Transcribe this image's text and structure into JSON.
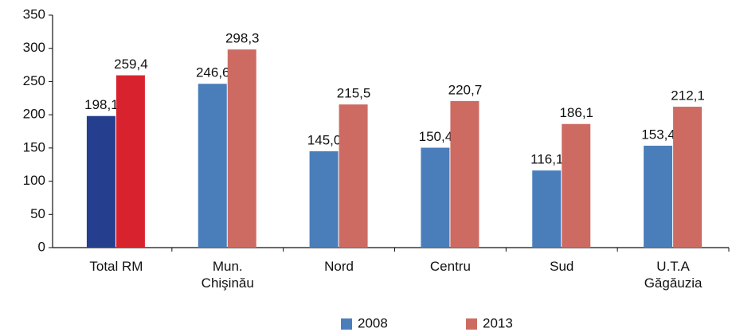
{
  "chart_data": {
    "type": "bar",
    "categories": [
      "Total RM",
      "Mun.\nChişinău",
      "Nord",
      "Centru",
      "Sud",
      "U.T.A\nGăgăuzia"
    ],
    "series": [
      {
        "name": "2008",
        "color": "#4a7ebb",
        "colors": [
          "#253f8e",
          "#4a7ebb",
          "#4a7ebb",
          "#4a7ebb",
          "#4a7ebb",
          "#4a7ebb"
        ],
        "values": [
          198.1,
          246.6,
          145.0,
          150.4,
          116.1,
          153.4
        ],
        "value_labels": [
          "198,1",
          "246,6",
          "145,0",
          "150,4",
          "116,1",
          "153,4"
        ]
      },
      {
        "name": "2013",
        "color": "#cd6b63",
        "colors": [
          "#d8232e",
          "#cd6b63",
          "#cd6b63",
          "#cd6b63",
          "#cd6b63",
          "#cd6b63"
        ],
        "values": [
          259.4,
          298.3,
          215.5,
          220.7,
          186.1,
          212.1
        ],
        "value_labels": [
          "259,4",
          "298,3",
          "215,5",
          "220,7",
          "186,1",
          "212,1"
        ]
      }
    ],
    "ylim": [
      0,
      350
    ],
    "yticks": [
      0,
      50,
      100,
      150,
      200,
      250,
      300,
      350
    ],
    "grid": false,
    "legend": "bottom"
  }
}
